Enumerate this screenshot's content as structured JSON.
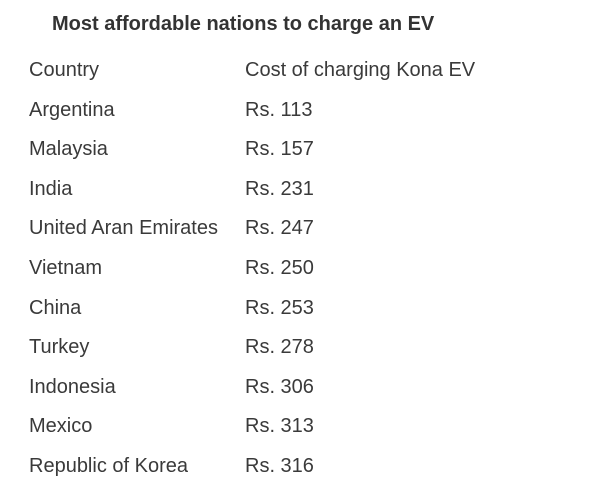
{
  "header": {
    "title": "Most affordable nations to charge an EV"
  },
  "table": {
    "columns": [
      "Country",
      "Cost of charging Kona EV"
    ],
    "rows": [
      [
        "Argentina",
        "Rs. 113"
      ],
      [
        "Malaysia",
        "Rs. 157"
      ],
      [
        "India",
        "Rs. 231"
      ],
      [
        "United Aran Emirates",
        "Rs. 247"
      ],
      [
        "Vietnam",
        "Rs. 250"
      ],
      [
        "China",
        "Rs. 253"
      ],
      [
        "Turkey",
        "Rs. 278"
      ],
      [
        "Indonesia",
        "Rs. 306"
      ],
      [
        "Mexico",
        "Rs. 313"
      ],
      [
        "Republic of Korea",
        "Rs. 316"
      ]
    ]
  }
}
